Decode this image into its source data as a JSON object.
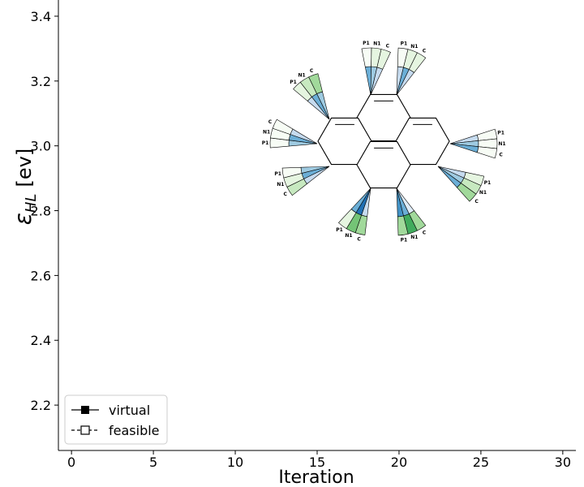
{
  "chart_data": {
    "type": "line",
    "title": "",
    "xlabel": "Iteration",
    "ylabel_main": "ε",
    "ylabel_sub": "HL",
    "ylabel_unit": "[ev]",
    "xlim": [
      -0.8,
      30.8
    ],
    "ylim": [
      2.06,
      3.45
    ],
    "xticks": [
      0,
      5,
      10,
      15,
      20,
      25,
      30
    ],
    "yticks": [
      2.2,
      2.4,
      2.6,
      2.8,
      3.0,
      3.2,
      3.4
    ],
    "xtick_labels": [
      "0",
      "5",
      "10",
      "15",
      "20",
      "25",
      "30"
    ],
    "ytick_labels": [
      "2.2",
      "2.4",
      "2.6",
      "2.8",
      "3.0",
      "3.2",
      "3.4"
    ],
    "series": [
      {
        "name": "virtual",
        "marker": "filled-square",
        "linestyle": "solid",
        "x": [],
        "y": []
      },
      {
        "name": "feasible",
        "marker": "open-square",
        "linestyle": "dashed",
        "x": [],
        "y": []
      }
    ],
    "legend": {
      "position": "lower-left",
      "entries": [
        "virtual",
        "feasible"
      ]
    },
    "inset_molecule": {
      "description_labels": [
        "P1",
        "N1",
        "C"
      ],
      "fans": [
        {
          "site": 1,
          "labels": [
            "P1",
            "N1",
            "C"
          ],
          "inner": [
            "#6baed6",
            "#9ecae1",
            "#c6dbef"
          ],
          "outer": [
            "#f7fcf5",
            "#e5f5e0",
            "#e5f5e0"
          ]
        },
        {
          "site": 2,
          "labels": [
            "P1",
            "N1",
            "C"
          ],
          "inner": [
            "#c6dbef",
            "#6baed6",
            "#c6dbef"
          ],
          "outer": [
            "#f7fcf5",
            "#e5f5e0",
            "#e5f5e0"
          ]
        },
        {
          "site": 3,
          "labels": [
            "P1",
            "N1",
            "C"
          ],
          "inner": [
            "#c6dbef",
            "#6baed6",
            "#9ecae1"
          ],
          "outer": [
            "#e5f5e0",
            "#c7e9c0",
            "#a1d99b"
          ]
        },
        {
          "site": 4,
          "labels": [
            "P1",
            "N1",
            "C"
          ],
          "inner": [
            "#9ecae1",
            "#6baed6",
            "#c6dbef"
          ],
          "outer": [
            "#f7fcf5",
            "#f7fcf5",
            "#f7fcf5"
          ]
        },
        {
          "site": 5,
          "labels": [
            "C",
            "N1",
            "P1"
          ],
          "inner": [
            "#c6dbef",
            "#6baed6",
            "#9ecae1"
          ],
          "outer": [
            "#c7e9c0",
            "#e5f5e0",
            "#f7fcf5"
          ]
        },
        {
          "site": 6,
          "labels": [
            "C",
            "N1",
            "P1"
          ],
          "inner": [
            "#c6dbef",
            "#2171b5",
            "#6baed6"
          ],
          "outer": [
            "#a1d99b",
            "#74c476",
            "#e5f5e0"
          ]
        },
        {
          "site": 7,
          "labels": [
            "C",
            "N1",
            "P1"
          ],
          "inner": [
            "#deebf7",
            "#6baed6",
            "#4292c6"
          ],
          "outer": [
            "#a1d99b",
            "#41ab5d",
            "#a1d99b"
          ]
        },
        {
          "site": 8,
          "labels": [
            "P1",
            "N1",
            "C"
          ],
          "inner": [
            "#c6dbef",
            "#9ecae1",
            "#6baed6"
          ],
          "outer": [
            "#e5f5e0",
            "#c7e9c0",
            "#a1d99b"
          ]
        },
        {
          "site": 9,
          "labels": [
            "P1",
            "N1",
            "C"
          ],
          "inner": [
            "#c6dbef",
            "#9ecae1",
            "#6baed6"
          ],
          "outer": [
            "#f7fcf5",
            "#f7fcf5",
            "#f7fcf5"
          ]
        }
      ]
    }
  },
  "colors": {
    "axis": "#000000",
    "line": "#000000",
    "bond": "#000000"
  }
}
